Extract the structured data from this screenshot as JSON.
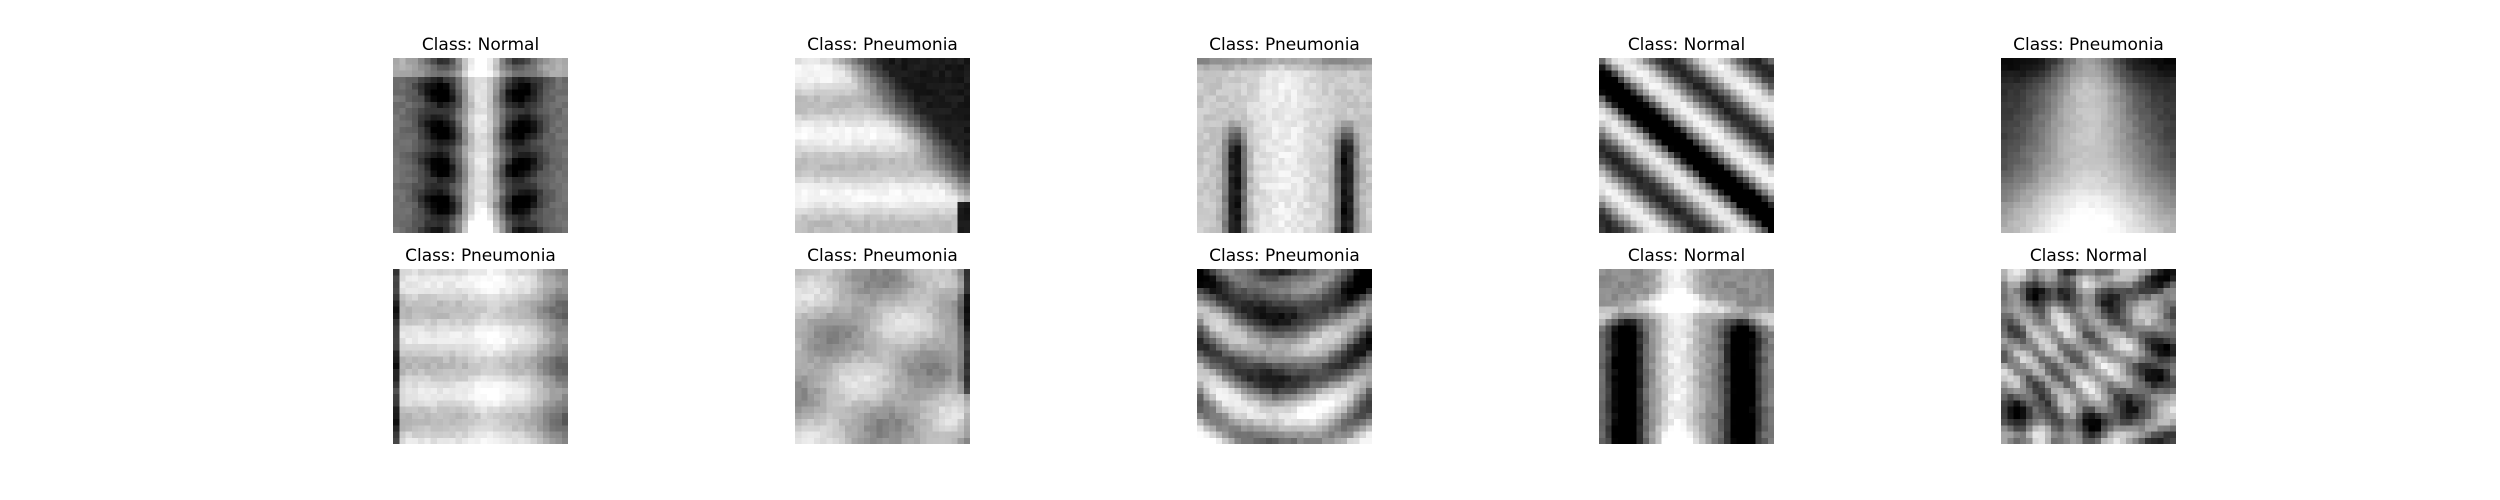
{
  "figure": {
    "panels": [
      {
        "class_label": "Class: Normal",
        "subject": "frontal chest x-ray, grayscale, low resolution"
      },
      {
        "class_label": "Class: Pneumonia",
        "subject": "cropped chest x-ray showing bright lower region and dark upper right"
      },
      {
        "class_label": "Class: Pneumonia",
        "subject": "frontal chest x-ray with bright mediastinum and dark lung fields"
      },
      {
        "class_label": "Class: Normal",
        "subject": "oblique chest x-ray with diagonal rib bands"
      },
      {
        "class_label": "Class: Pneumonia",
        "subject": "blurry chest x-ray with bright central column"
      },
      {
        "class_label": "Class: Pneumonia",
        "subject": "washed-out chest x-ray, bright center, dark left edge"
      },
      {
        "class_label": "Class: Pneumonia",
        "subject": "hazy light-gray chest x-ray"
      },
      {
        "class_label": "Class: Pneumonia",
        "subject": "chest x-ray with dark curved rib shadows"
      },
      {
        "class_label": "Class: Normal",
        "subject": "frontal chest x-ray with dark lungs and bright spine"
      },
      {
        "class_label": "Class: Normal",
        "subject": "high-contrast close-up with swirling dark and light bands"
      }
    ]
  }
}
